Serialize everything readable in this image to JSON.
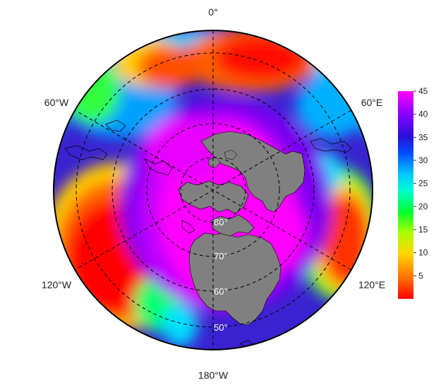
{
  "map": {
    "projection": "polar-stereographic",
    "longitude_labels": {
      "top": "0°",
      "upper_right": "60°E",
      "lower_right": "120°E",
      "bottom": "180°W",
      "lower_left": "120°W",
      "upper_left": "60°W"
    },
    "latitude_labels": [
      "80°",
      "70°",
      "60°",
      "50°"
    ],
    "land_color": "#808080",
    "grid_style": "dashed"
  },
  "colorbar": {
    "ticks": [
      "45",
      "40",
      "35",
      "30",
      "25",
      "20",
      "15",
      "10",
      "5"
    ],
    "range": [
      0,
      45
    ],
    "colors": [
      "#ff0000",
      "#ff8000",
      "#ffd000",
      "#b0ff00",
      "#00ff00",
      "#00ffc0",
      "#00c8ff",
      "#0050ff",
      "#3000c0",
      "#8000ff",
      "#ff00ff"
    ]
  }
}
